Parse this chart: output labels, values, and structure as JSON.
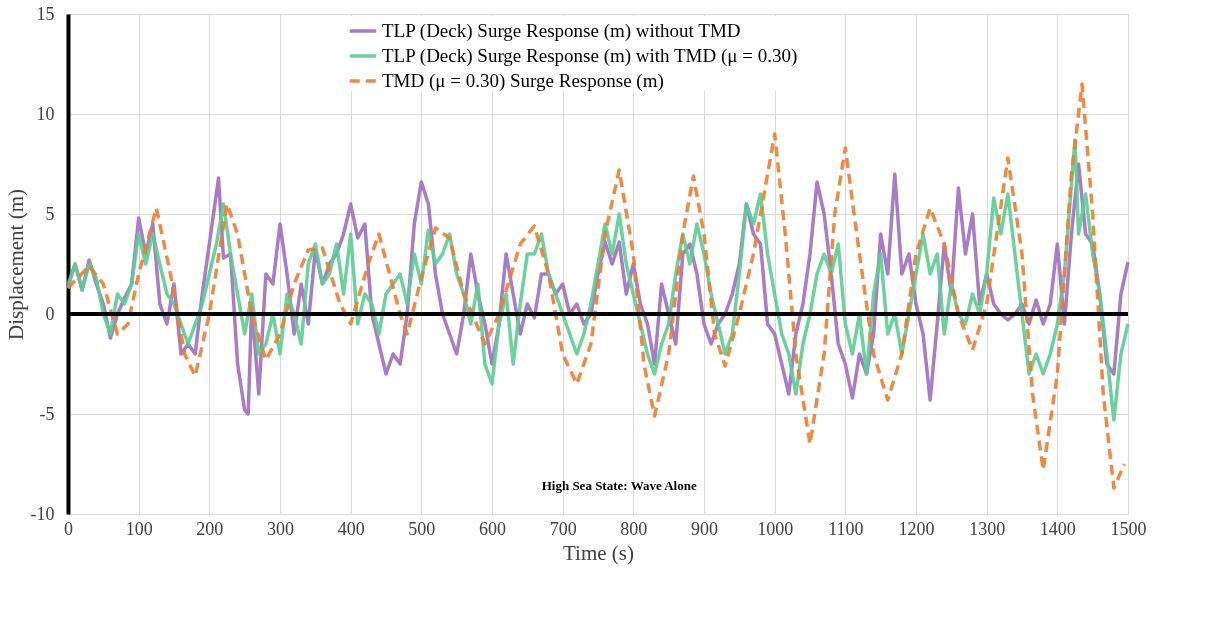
{
  "chart_data": {
    "type": "line",
    "xlabel": "Time (s)",
    "ylabel": "Displacement (m)",
    "xlim": [
      0,
      1500
    ],
    "xticks": [
      0,
      100,
      200,
      300,
      400,
      500,
      600,
      700,
      800,
      900,
      {
        "value": 1000,
        "label": "1000"
      },
      {
        "value": 1100,
        "label": "1100"
      },
      {
        "value": 1200,
        "label": "1200"
      },
      {
        "value": 1300,
        "label": "1300"
      },
      {
        "value": 1400,
        "label": "1400"
      },
      {
        "value": 1500,
        "label": "1500"
      }
    ],
    "ylim": [
      -10,
      15
    ],
    "yticks": [
      -10,
      -5,
      0,
      5,
      10,
      15
    ],
    "grid": true,
    "legend": "top",
    "marker": "none",
    "annotations": [
      "High Sea State: Wave Alone"
    ],
    "ref_lines": [
      {
        "axis": "y",
        "value": 0,
        "color": "#000000"
      }
    ],
    "series": [
      {
        "name": "TLP (Deck) Surge Response (m) without TMD",
        "color": "#9e6fc0",
        "line_style": "solid",
        "x": [
          0,
          10,
          20,
          30,
          40,
          50,
          60,
          70,
          80,
          90,
          100,
          110,
          120,
          130,
          140,
          150,
          160,
          170,
          180,
          190,
          200,
          213,
          220,
          230,
          240,
          250,
          255,
          260,
          270,
          280,
          290,
          300,
          310,
          320,
          330,
          340,
          350,
          360,
          370,
          380,
          390,
          400,
          410,
          420,
          430,
          440,
          450,
          460,
          470,
          480,
          490,
          500,
          510,
          520,
          530,
          540,
          550,
          560,
          570,
          580,
          590,
          600,
          610,
          620,
          630,
          640,
          650,
          660,
          670,
          680,
          690,
          700,
          710,
          720,
          730,
          740,
          750,
          760,
          770,
          780,
          790,
          800,
          810,
          820,
          830,
          840,
          850,
          860,
          870,
          880,
          890,
          900,
          910,
          920,
          930,
          940,
          950,
          960,
          970,
          980,
          990,
          1000,
          1010,
          1020,
          1030,
          1040,
          1050,
          1060,
          1070,
          1080,
          1090,
          1100,
          1110,
          1120,
          1130,
          1140,
          1150,
          1160,
          1170,
          1180,
          1190,
          1200,
          1210,
          1220,
          1230,
          1240,
          1250,
          1260,
          1270,
          1280,
          1290,
          1300,
          1310,
          1320,
          1330,
          1340,
          1350,
          1360,
          1370,
          1380,
          1390,
          1400,
          1410,
          1420,
          1430,
          1440,
          1450,
          1460,
          1470,
          1480,
          1490,
          1500
        ],
        "values": [
          1.5,
          2.5,
          1.2,
          2.7,
          1.5,
          0.5,
          -1.2,
          0,
          0.8,
          1.5,
          4.8,
          3,
          4.5,
          0.5,
          -0.5,
          1.5,
          -2,
          -1.5,
          -2,
          1,
          3.5,
          6.8,
          2.8,
          3,
          -2.5,
          -4.8,
          -5,
          0.5,
          -4,
          2,
          1.5,
          4.5,
          2,
          -1,
          1.5,
          -0.5,
          3.2,
          1.5,
          2.5,
          3,
          4,
          5.5,
          3.8,
          4.5,
          0,
          -1.5,
          -3,
          -2,
          -2.5,
          0,
          4.5,
          6.6,
          5.5,
          2,
          0,
          -1,
          -2,
          0,
          3,
          1,
          -0.5,
          -2.5,
          -0.5,
          3,
          1,
          -1,
          0.5,
          -0.2,
          2,
          2,
          1,
          1.5,
          0,
          0.5,
          -0.5,
          0,
          2,
          3.6,
          2.5,
          3.6,
          1,
          2.5,
          0.5,
          -0.5,
          -2.5,
          1.5,
          0,
          -1.5,
          3,
          3.5,
          2,
          -0.5,
          -1.5,
          -0.5,
          0,
          1,
          2.5,
          5.5,
          4,
          3.5,
          -0.5,
          -1,
          -2.5,
          -4,
          -1,
          0.5,
          3,
          6.6,
          5,
          2,
          -1.5,
          -2.5,
          -4.2,
          -2,
          -3,
          -1,
          4,
          2,
          7,
          2,
          3,
          0.5,
          -1,
          -4.3,
          -0.5,
          3.5,
          1,
          6.3,
          3,
          5,
          0.5,
          2,
          0.5,
          0,
          -0.3,
          0,
          0.5,
          -0.5,
          0.7,
          -0.5,
          0.5,
          3.5,
          -0.5,
          4,
          7.5,
          4,
          3.5,
          1,
          -2.5,
          -3,
          1,
          2.6
        ]
      },
      {
        "name": "TLP (Deck) Surge Response (m) with TMD (μ = 0.30)",
        "color": "#5dcc93",
        "line_style": "solid",
        "x": [
          0,
          10,
          20,
          30,
          40,
          50,
          60,
          70,
          80,
          90,
          100,
          110,
          120,
          130,
          140,
          150,
          160,
          170,
          180,
          190,
          200,
          210,
          220,
          230,
          240,
          250,
          260,
          270,
          280,
          290,
          300,
          310,
          320,
          330,
          340,
          350,
          360,
          370,
          380,
          390,
          400,
          410,
          420,
          430,
          440,
          450,
          460,
          470,
          480,
          490,
          500,
          510,
          520,
          530,
          540,
          550,
          560,
          570,
          580,
          590,
          600,
          610,
          620,
          630,
          640,
          650,
          660,
          670,
          680,
          690,
          700,
          710,
          720,
          730,
          740,
          750,
          760,
          770,
          780,
          790,
          800,
          810,
          820,
          830,
          840,
          850,
          860,
          870,
          880,
          890,
          900,
          910,
          920,
          930,
          940,
          950,
          960,
          970,
          980,
          990,
          1000,
          1010,
          1020,
          1030,
          1040,
          1050,
          1060,
          1070,
          1080,
          1090,
          1100,
          1110,
          1120,
          1130,
          1140,
          1150,
          1160,
          1170,
          1180,
          1190,
          1200,
          1210,
          1220,
          1230,
          1240,
          1250,
          1260,
          1270,
          1280,
          1290,
          1300,
          1310,
          1320,
          1330,
          1340,
          1350,
          1360,
          1370,
          1380,
          1390,
          1400,
          1410,
          1420,
          1425,
          1430,
          1440,
          1450,
          1460,
          1470,
          1480,
          1490,
          1500
        ],
        "values": [
          1.3,
          2.5,
          1.2,
          2.5,
          1.8,
          0,
          -1,
          1,
          0.5,
          1.5,
          4,
          2.5,
          4,
          2.5,
          1,
          0.5,
          -0.5,
          -1.5,
          -0.5,
          0.5,
          2,
          3.5,
          5.5,
          3,
          1,
          -1,
          1,
          -2,
          -1.5,
          0,
          -2,
          1,
          0,
          -1.5,
          2.5,
          3.5,
          1.5,
          2,
          3.5,
          1,
          4,
          -0.5,
          1,
          0.5,
          -1,
          1,
          1.5,
          2,
          0.5,
          3,
          1.5,
          4.2,
          2.5,
          3,
          4,
          2,
          1,
          -0.5,
          1.5,
          -2.5,
          -3.5,
          -0.5,
          1,
          -2.5,
          0.5,
          3,
          3,
          4,
          2,
          1,
          0,
          -1,
          -2,
          -1,
          0.5,
          2.5,
          4.5,
          3,
          5,
          2.5,
          1,
          -0.5,
          -2,
          -3,
          -1.5,
          -0.5,
          2,
          4,
          2.5,
          4.5,
          3,
          1,
          -0.5,
          -2,
          -1,
          2,
          5.5,
          4.5,
          6,
          3,
          1,
          -1,
          -2,
          -4,
          -1.5,
          0,
          2,
          3,
          2,
          3.5,
          -0.5,
          -2,
          0,
          -3,
          1,
          3,
          -1,
          0,
          -2,
          0,
          2,
          4,
          2,
          3,
          -1,
          1.5,
          0,
          -0.5,
          1,
          0,
          2,
          5.8,
          4,
          6,
          3,
          0,
          -3,
          -2,
          -3,
          -2,
          -0.5,
          2,
          6.5,
          8.7,
          4,
          6,
          3,
          1,
          -2,
          -5.3,
          -2,
          -0.5
        ]
      },
      {
        "name": "TMD (μ = 0.30) Surge Response (m)",
        "color": "#ed7d31",
        "line_style": "dashed",
        "x": [
          0,
          30,
          50,
          70,
          85,
          100,
          125,
          145,
          165,
          180,
          200,
          225,
          240,
          260,
          280,
          300,
          320,
          340,
          360,
          385,
          400,
          425,
          440,
          455,
          470,
          480,
          500,
          520,
          540,
          560,
          590,
          610,
          640,
          660,
          680,
          700,
          720,
          740,
          760,
          780,
          800,
          815,
          830,
          850,
          870,
          885,
          900,
          915,
          930,
          950,
          970,
          1000,
          1015,
          1030,
          1050,
          1070,
          1085,
          1100,
          1120,
          1140,
          1160,
          1180,
          1200,
          1220,
          1240,
          1260,
          1280,
          1300,
          1330,
          1350,
          1365,
          1380,
          1400,
          1420,
          1435,
          1450,
          1465,
          1480,
          1495
        ],
        "values": [
          1.3,
          2.4,
          1.5,
          -1,
          -0.5,
          2,
          5.3,
          2,
          -2,
          -3.1,
          0,
          5.5,
          4,
          0,
          -2.3,
          -1,
          1.5,
          3.2,
          3.3,
          0.5,
          -0.5,
          2.5,
          4,
          2,
          0,
          -1,
          1.8,
          4.3,
          3.8,
          1,
          -1.5,
          0,
          3.5,
          4.4,
          2,
          -2,
          -3.5,
          -1.5,
          4,
          7.2,
          3,
          -2.5,
          -5.1,
          -2,
          4,
          6.9,
          4,
          -1,
          -2.6,
          0,
          3,
          9,
          4,
          -2,
          -6.5,
          -2,
          5,
          8.3,
          3,
          -2,
          -4.3,
          -2,
          3,
          5.3,
          3.5,
          0,
          -1.8,
          0.5,
          7.8,
          3,
          -4,
          -7.8,
          -3,
          7,
          11.5,
          5,
          -4,
          -8.7,
          -7.5
        ]
      }
    ]
  }
}
